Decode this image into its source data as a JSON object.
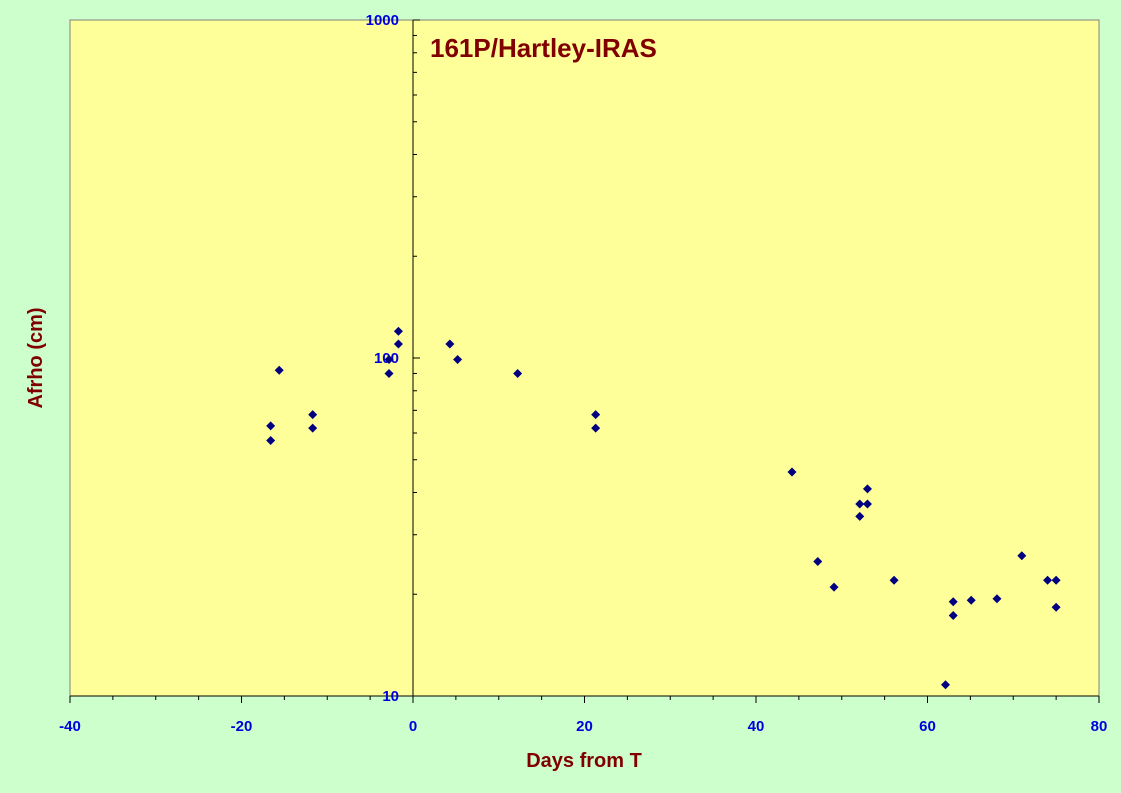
{
  "colors": {
    "page_background": "#ccffcc",
    "plot_background": "#ffff99",
    "marker": "#000080",
    "tick_label": "#0000dd",
    "title": "#800000"
  },
  "chart_data": {
    "type": "scatter",
    "title": "161P/Hartley-IRAS",
    "xlabel": "Days from T",
    "ylabel": "Afrho (cm)",
    "xlim": [
      -40,
      80
    ],
    "ylim": [
      10,
      1000
    ],
    "y_scale": "log",
    "grid": false,
    "legend": "none",
    "marker": "diamond",
    "x_ticks": [
      -40,
      -20,
      0,
      20,
      40,
      60,
      80
    ],
    "y_ticks": [
      10,
      100,
      1000
    ],
    "x_tick_labels": [
      "-40",
      "-20",
      "0",
      "20",
      "40",
      "60",
      "80"
    ],
    "y_tick_labels": [
      "10",
      "100",
      "1000"
    ],
    "points": [
      {
        "x": -16.6,
        "y": 63
      },
      {
        "x": -16.6,
        "y": 57
      },
      {
        "x": -15.6,
        "y": 92
      },
      {
        "x": -11.7,
        "y": 68
      },
      {
        "x": -11.7,
        "y": 62
      },
      {
        "x": -2.8,
        "y": 99
      },
      {
        "x": -2.8,
        "y": 90
      },
      {
        "x": -1.7,
        "y": 120
      },
      {
        "x": -1.7,
        "y": 110
      },
      {
        "x": 4.3,
        "y": 110
      },
      {
        "x": 5.2,
        "y": 99
      },
      {
        "x": 12.2,
        "y": 90
      },
      {
        "x": 21.3,
        "y": 68
      },
      {
        "x": 21.3,
        "y": 62
      },
      {
        "x": 44.2,
        "y": 46
      },
      {
        "x": 47.2,
        "y": 25
      },
      {
        "x": 49.1,
        "y": 21
      },
      {
        "x": 52.1,
        "y": 37
      },
      {
        "x": 52.1,
        "y": 34
      },
      {
        "x": 53.0,
        "y": 41
      },
      {
        "x": 53.0,
        "y": 37
      },
      {
        "x": 56.1,
        "y": 22
      },
      {
        "x": 62.1,
        "y": 10.8
      },
      {
        "x": 63.0,
        "y": 19
      },
      {
        "x": 63.0,
        "y": 17.3
      },
      {
        "x": 65.1,
        "y": 19.2
      },
      {
        "x": 68.1,
        "y": 19.4
      },
      {
        "x": 71.0,
        "y": 26
      },
      {
        "x": 74.0,
        "y": 22
      },
      {
        "x": 75.0,
        "y": 22
      },
      {
        "x": 75.0,
        "y": 18.3
      }
    ]
  }
}
